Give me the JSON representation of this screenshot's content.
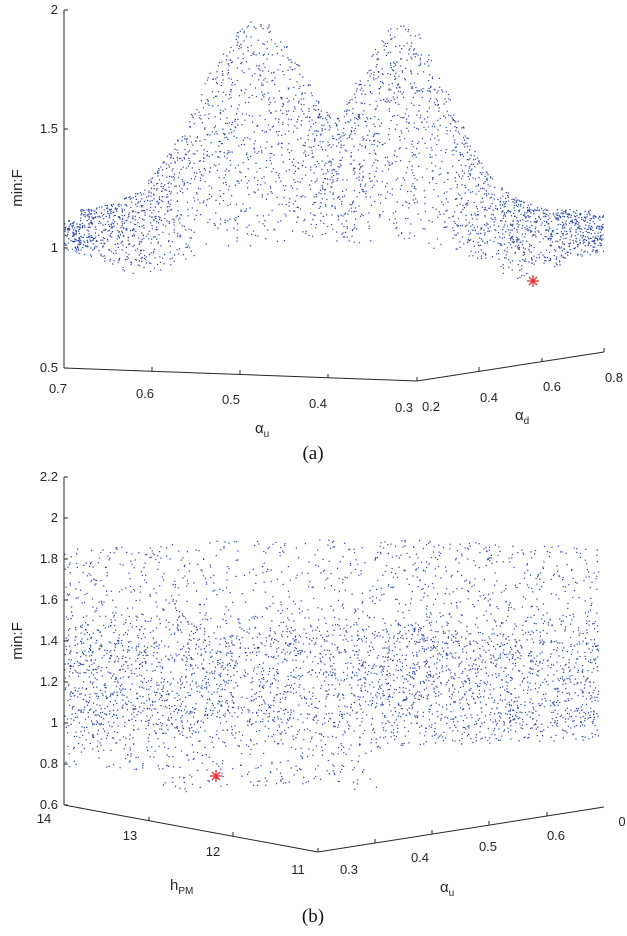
{
  "chart_data": [
    {
      "type": "scatter",
      "panel_label": "(a)",
      "zlabel": "min:F",
      "xlabel": {
        "main": "α",
        "sub": "u"
      },
      "ylabel": {
        "main": "α",
        "sub": "d"
      },
      "z_ticks": [
        "0.5",
        "1",
        "1.5",
        "2"
      ],
      "zlim": [
        0.5,
        2
      ],
      "x_ticks": [
        "0.7",
        "0.6",
        "0.5",
        "0.4",
        "0.3"
      ],
      "xlim": [
        0.7,
        0.3
      ],
      "y_ticks": [
        "0.2",
        "0.4",
        "0.6",
        "0.8"
      ],
      "ylim": [
        0.2,
        0.8
      ],
      "series_color": "#1f3fa8",
      "optimum_color": "#e8302c",
      "optimum": {
        "alpha_u": 0.3,
        "alpha_d": 0.55,
        "min_F": 0.87
      },
      "approx_point_count": 6000
    },
    {
      "type": "scatter",
      "panel_label": "(b)",
      "zlabel": "min:F",
      "xlabel": {
        "main": "h",
        "sub": "PM"
      },
      "ylabel": {
        "main": "α",
        "sub": "u"
      },
      "z_ticks": [
        "0.6",
        "0.8",
        "1",
        "1.2",
        "1.4",
        "1.6",
        "1.8",
        "2",
        "2.2"
      ],
      "zlim": [
        0.6,
        2.2
      ],
      "x_ticks": [
        "14",
        "13",
        "12",
        "11"
      ],
      "xlim": [
        14,
        11
      ],
      "y_ticks": [
        "0.3",
        "0.4",
        "0.5",
        "0.6",
        "0"
      ],
      "ylim": [
        0.3,
        0.7
      ],
      "series_color": "#1f3fa8",
      "optimum_color": "#e8302c",
      "optimum": {
        "h_PM": 13.3,
        "alpha_u": 0.3,
        "min_F": 0.74
      },
      "approx_point_count": 7000
    }
  ]
}
